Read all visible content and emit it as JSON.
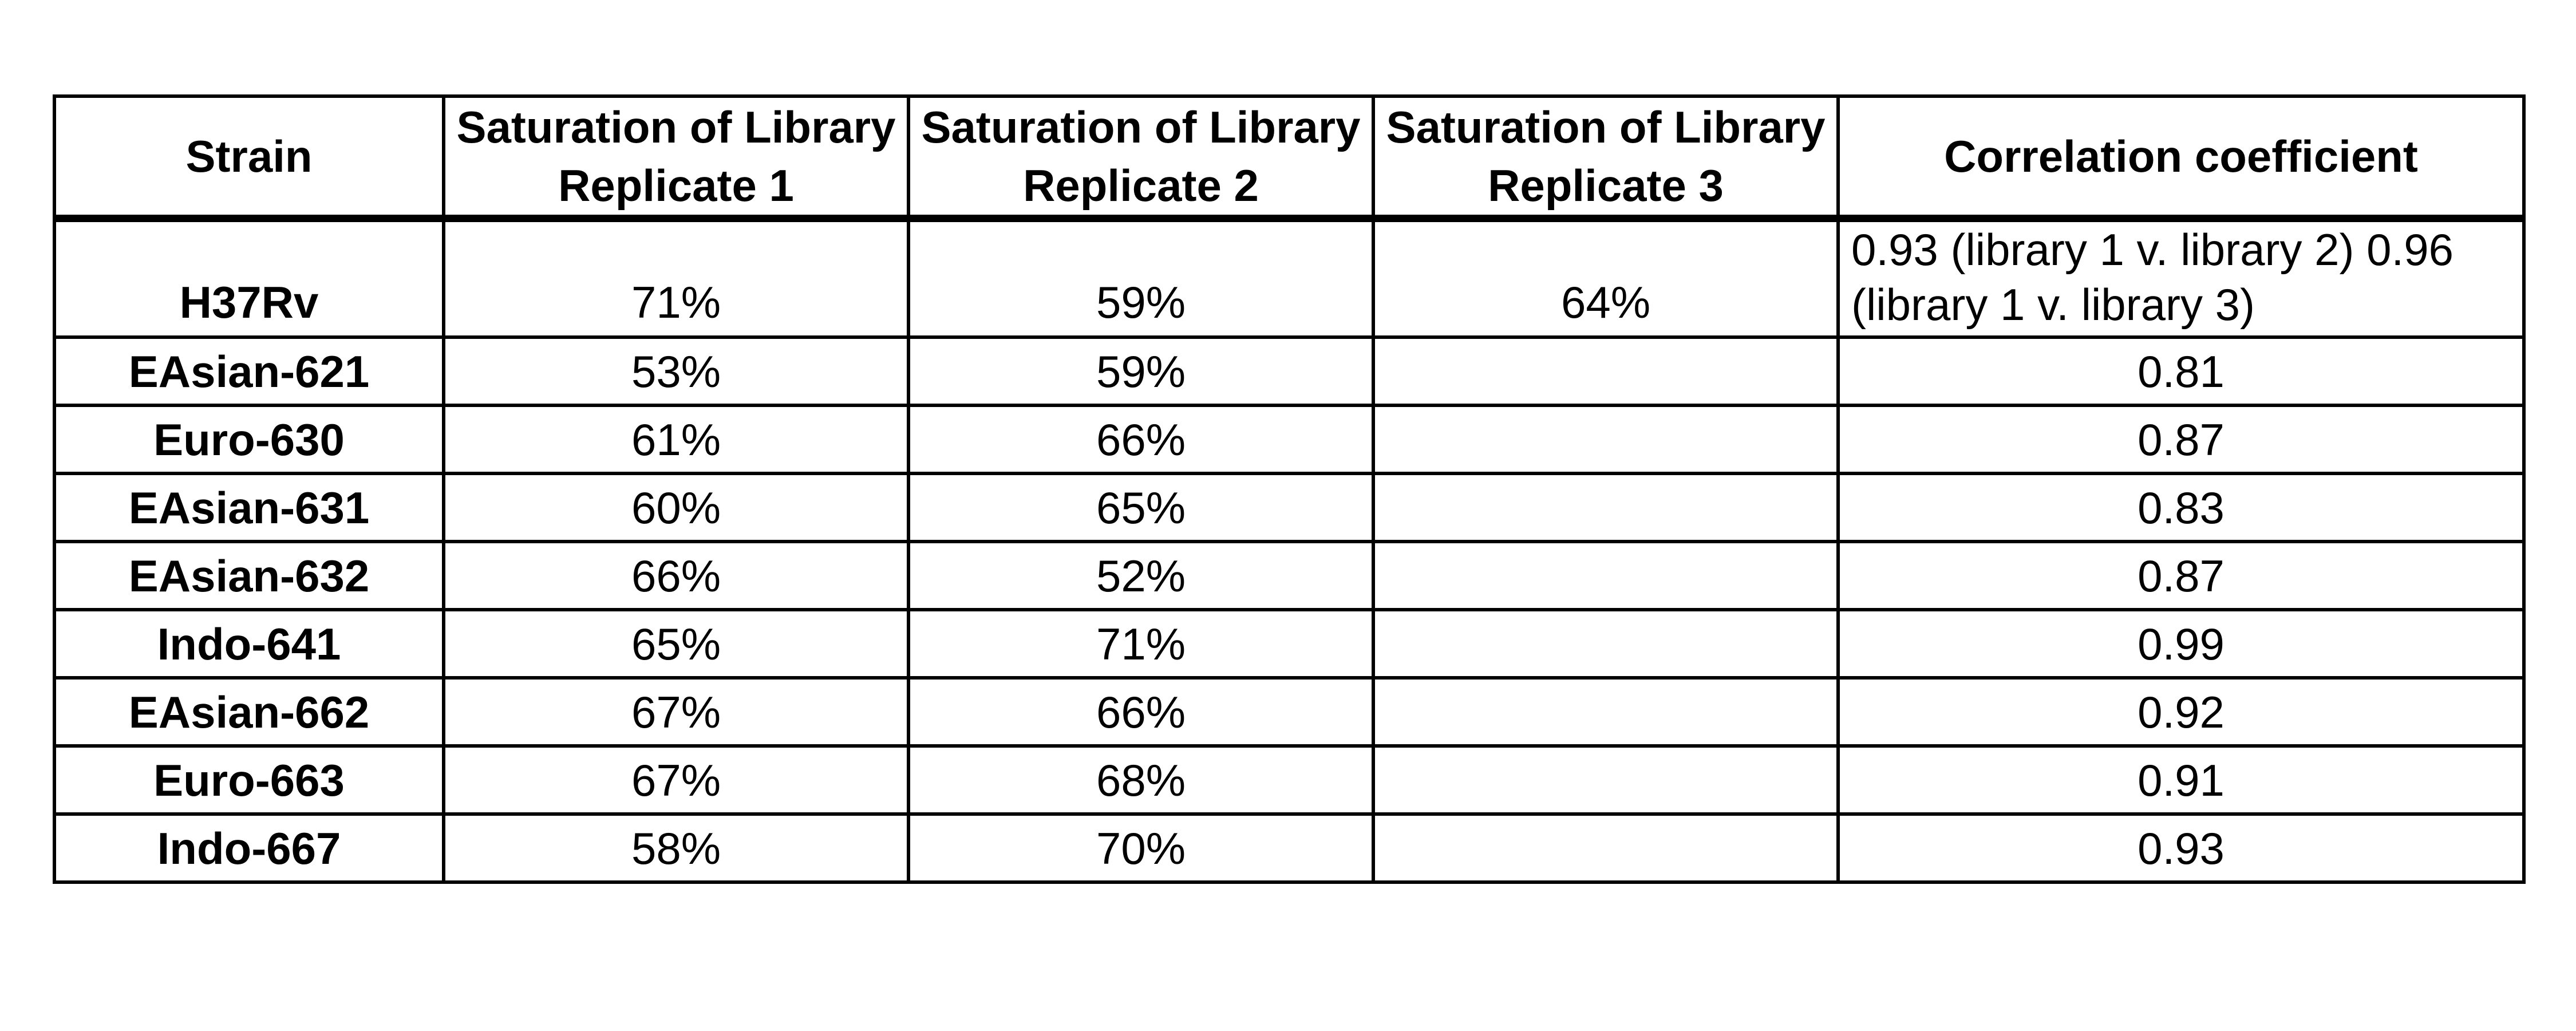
{
  "table": {
    "headers": [
      "Strain",
      "Saturation of Library Replicate 1",
      "Saturation of Library Replicate 2",
      "Saturation of Library Replicate 3",
      "Correlation coefficient"
    ],
    "rows": [
      [
        "H37Rv",
        "71%",
        "59%",
        "64%",
        "0.93 (library 1 v. library 2) 0.96 (library 1 v. library 3)"
      ],
      [
        "EAsian-621",
        "53%",
        "59%",
        "",
        "0.81"
      ],
      [
        "Euro-630",
        "61%",
        "66%",
        "",
        "0.87"
      ],
      [
        "EAsian-631",
        "60%",
        "65%",
        "",
        "0.83"
      ],
      [
        "EAsian-632",
        "66%",
        "52%",
        "",
        "0.87"
      ],
      [
        "Indo-641",
        "65%",
        "71%",
        "",
        "0.99"
      ],
      [
        "EAsian-662",
        "67%",
        "66%",
        "",
        "0.92"
      ],
      [
        "Euro-663",
        "67%",
        "68%",
        "",
        "0.91"
      ],
      [
        "Indo-667",
        "58%",
        "70%",
        "",
        "0.93"
      ]
    ]
  }
}
